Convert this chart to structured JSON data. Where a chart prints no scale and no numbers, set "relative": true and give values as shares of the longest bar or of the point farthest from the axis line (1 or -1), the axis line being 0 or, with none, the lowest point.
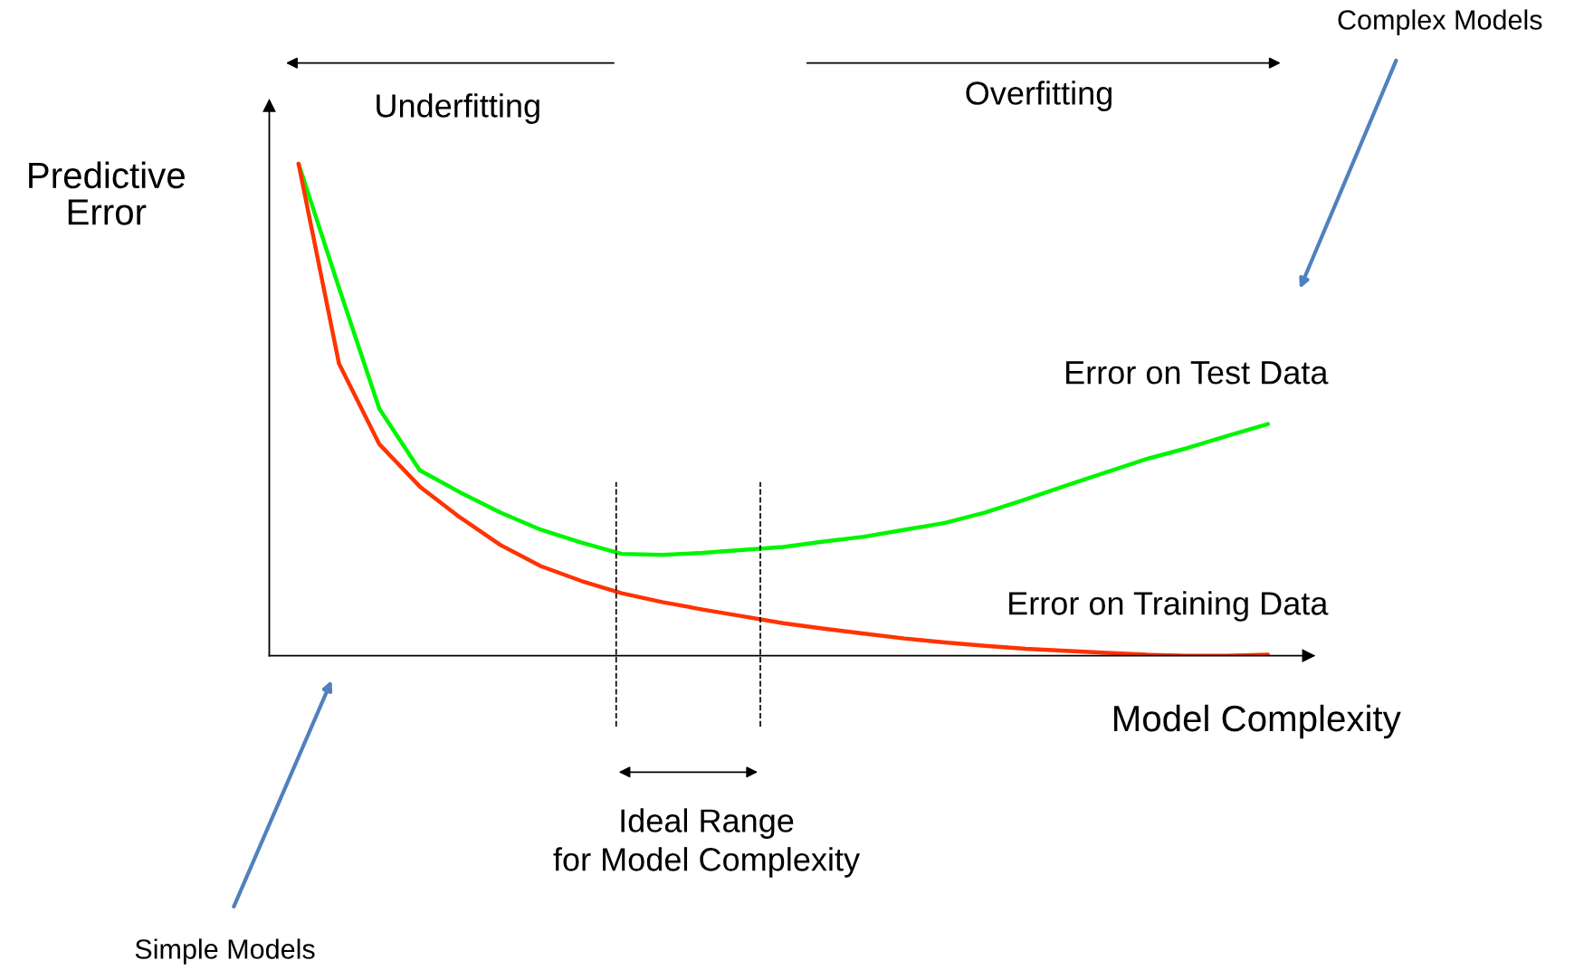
{
  "chart_data": {
    "type": "line",
    "relative": true,
    "ylabel": "Predictive\nError",
    "xlabel": "Model Complexity",
    "categories": [
      null,
      null,
      null,
      null,
      null,
      null,
      null,
      null,
      null,
      null,
      null,
      null,
      null,
      null,
      null,
      null,
      null,
      null,
      null,
      null,
      null,
      null,
      null,
      null,
      null
    ],
    "series": [
      {
        "name": "Error on Test Data",
        "color": "#00f500",
        "values": [
          1.0,
          0.748,
          0.502,
          0.377,
          0.332,
          0.291,
          0.256,
          0.23,
          0.207,
          0.205,
          0.209,
          0.215,
          0.221,
          0.232,
          0.242,
          0.256,
          0.27,
          0.291,
          0.318,
          0.346,
          0.373,
          0.4,
          0.422,
          0.447,
          0.471
        ]
      },
      {
        "name": "Error on Training Data",
        "color": "#ff3300",
        "values": [
          1.0,
          0.594,
          0.43,
          0.344,
          0.281,
          0.225,
          0.182,
          0.152,
          0.127,
          0.109,
          0.094,
          0.08,
          0.066,
          0.055,
          0.045,
          0.035,
          0.027,
          0.02,
          0.014,
          0.01,
          0.006,
          0.002,
          0.0,
          0.0,
          0.002
        ]
      }
    ],
    "annotations": [
      "Underfitting",
      "Overfitting",
      "Complex Models",
      "Simple Models",
      "Ideal Range\nfor Model Complexity"
    ],
    "legend": false,
    "marker": "none",
    "line_style": "solid"
  }
}
